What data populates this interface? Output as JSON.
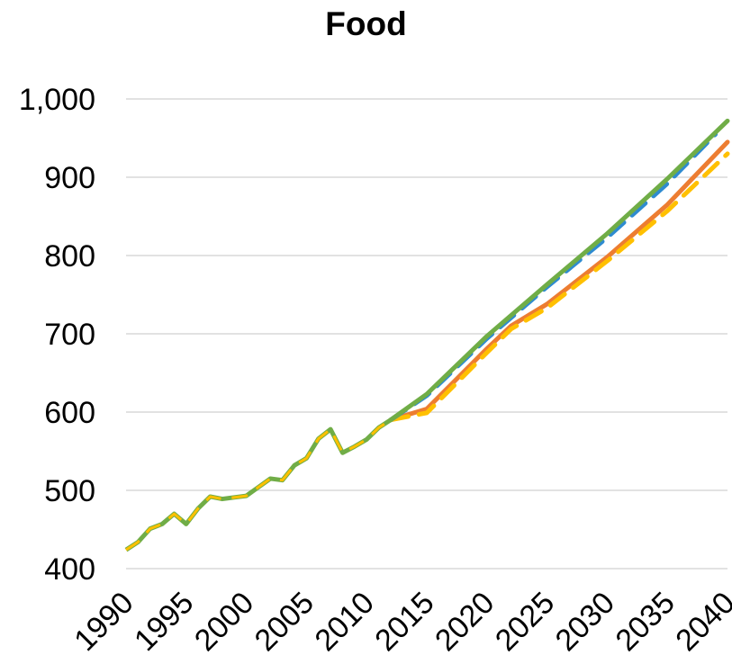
{
  "chart_data": {
    "type": "line",
    "title": "Food",
    "xlabel": "",
    "ylabel": "",
    "xlim": [
      1990,
      2040
    ],
    "ylim": [
      400,
      1000
    ],
    "x_ticks": [
      "1990",
      "1995",
      "2000",
      "2005",
      "2010",
      "2015",
      "2020",
      "2025",
      "2030",
      "2035",
      "2040"
    ],
    "y_ticks": [
      "400",
      "500",
      "600",
      "700",
      "800",
      "900",
      "1,000"
    ],
    "grid": true,
    "legend": "none",
    "history": {
      "x": [
        1990,
        1991,
        1992,
        1993,
        1994,
        1995,
        1996,
        1997,
        1998,
        1999,
        2000,
        2001,
        2002,
        2003,
        2004,
        2005,
        2006,
        2007,
        2008,
        2009,
        2010,
        2011,
        2012
      ],
      "values": [
        424,
        434,
        451,
        457,
        470,
        457,
        477,
        492,
        489,
        491,
        493,
        504,
        515,
        513,
        532,
        541,
        566,
        578,
        548,
        556,
        565,
        580,
        590
      ]
    },
    "series": [
      {
        "color": "#ED7D31",
        "style": "solid",
        "x": [
          2012,
          2015,
          2020,
          2022,
          2025,
          2030,
          2035,
          2040
        ],
        "values": [
          590,
          604,
          681,
          710,
          738,
          798,
          865,
          945
        ]
      },
      {
        "color": "#FFC000",
        "style": "dashed",
        "x": [
          2012,
          2015,
          2020,
          2022,
          2025,
          2030,
          2035,
          2040
        ],
        "values": [
          590,
          599,
          676,
          706,
          733,
          793,
          857,
          930
        ]
      },
      {
        "color": "#2E8BD0",
        "style": "dashed",
        "x": [
          2012,
          2015,
          2020,
          2025,
          2030,
          2035,
          2039
        ],
        "values": [
          590,
          621,
          694,
          760,
          823,
          892,
          955
        ]
      },
      {
        "color": "#70AD47",
        "style": "solid",
        "x": [
          2012,
          2015,
          2020,
          2025,
          2030,
          2035,
          2040
        ],
        "values": [
          590,
          623,
          697,
          763,
          828,
          898,
          972
        ]
      }
    ],
    "history_color": "#70AD47",
    "history_dash_color": "#FFC000",
    "grid_color": "#D9D9D9"
  }
}
